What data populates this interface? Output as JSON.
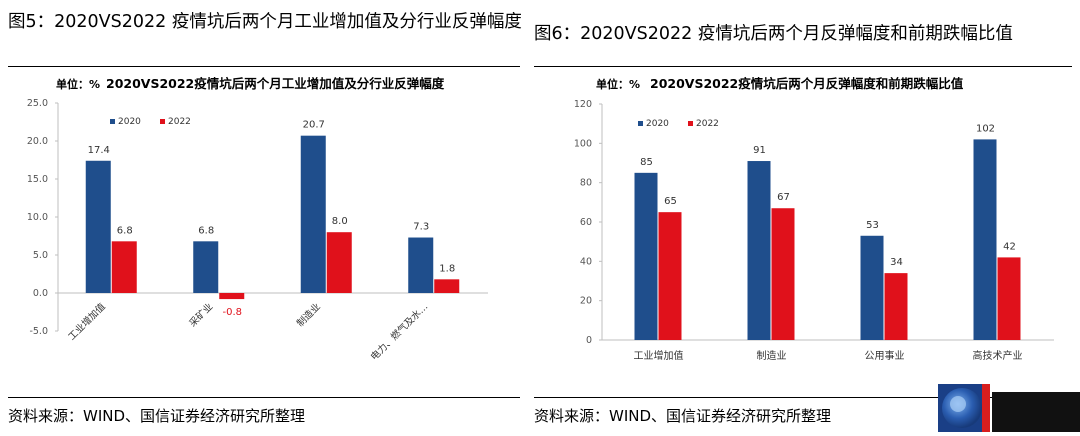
{
  "left_panel": {
    "figure_title": "图5：2020VS2022 疫情坑后两个月工业增加值及分行业反弹幅度",
    "source": "资料来源：WIND、国信证券经济研究所整理"
  },
  "right_panel": {
    "figure_title": "图6：2020VS2022 疫情坑后两个月反弹幅度和前期跌幅比值",
    "source": "资料来源：WIND、国信证券经济研究所整理"
  },
  "chart_data": [
    {
      "type": "bar",
      "unit_label": "单位：%",
      "title": "2020VS2022疫情坑后两个月工业增加值及分行业反弹幅度",
      "categories": [
        "工业增加值",
        "采矿业",
        "制造业",
        "电力、燃气及水…"
      ],
      "series": [
        {
          "name": "2020",
          "values": [
            17.4,
            6.8,
            20.7,
            7.3
          ],
          "color": "#1f4e8c"
        },
        {
          "name": "2022",
          "values": [
            6.8,
            -0.8,
            8.0,
            1.8
          ],
          "color": "#e0111b"
        }
      ],
      "y_ticks": [
        "25.0",
        "20.0",
        "15.0",
        "10.0",
        "5.0",
        "0.0",
        "-5.0"
      ],
      "ylim": [
        -5,
        25
      ],
      "legend_position": "top-left",
      "grid": false
    },
    {
      "type": "bar",
      "unit_label": "单位：%",
      "title": "2020VS2022疫情坑后两个月反弹幅度和前期跌幅比值",
      "categories": [
        "工业增加值",
        "制造业",
        "公用事业",
        "高技术产业"
      ],
      "series": [
        {
          "name": "2020",
          "values": [
            85,
            91,
            53,
            102
          ],
          "color": "#1f4e8c"
        },
        {
          "name": "2022",
          "values": [
            65,
            67,
            34,
            42
          ],
          "color": "#e0111b"
        }
      ],
      "y_ticks": [
        "120",
        "100",
        "80",
        "60",
        "40",
        "20",
        "0"
      ],
      "ylim": [
        0,
        120
      ],
      "legend_position": "top-left",
      "grid": false
    }
  ]
}
